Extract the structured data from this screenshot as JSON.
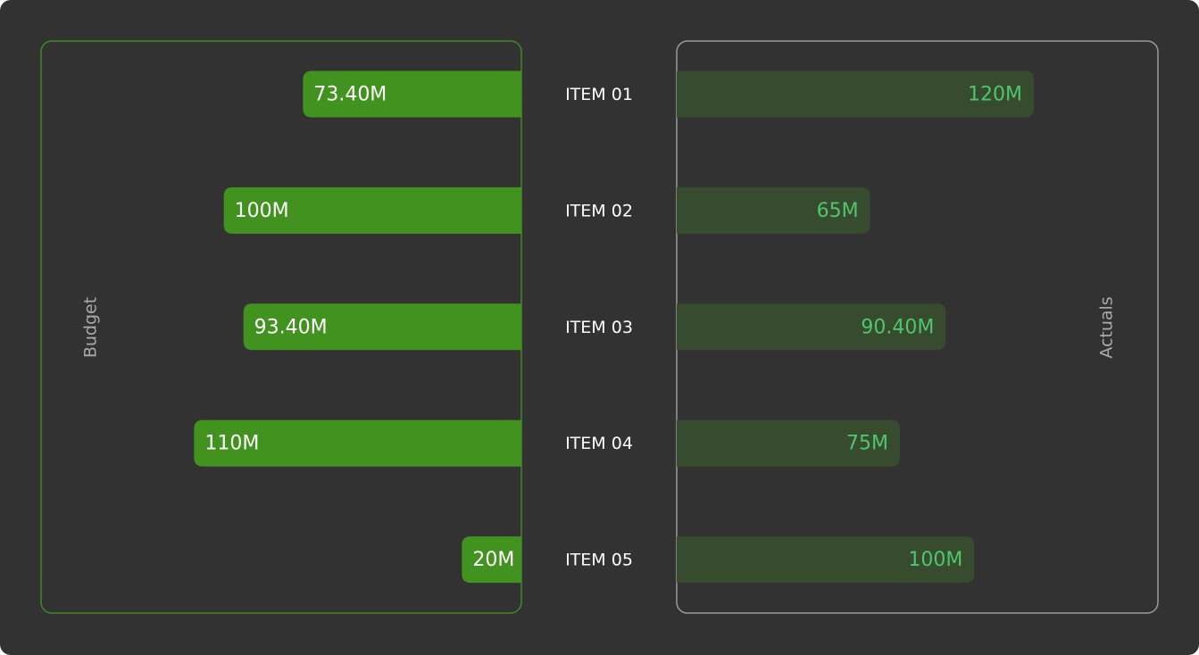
{
  "colors": {
    "background": "#323232",
    "budget_bar": "#42921f",
    "budget_frame": "#3f8a20",
    "actual_bar": "#374b2e",
    "actual_frame": "#9a9a9a",
    "actual_text": "#4fc56c",
    "panel_title_text": "#a9a9a9",
    "category_text": "#ffffff"
  },
  "chart_data": {
    "type": "bar",
    "orientation": "horizontal-diverging",
    "categories": [
      "ITEM 01",
      "ITEM 02",
      "ITEM 03",
      "ITEM 04",
      "ITEM 05"
    ],
    "series": [
      {
        "name": "Budget",
        "values": [
          73.4,
          100,
          93.4,
          110,
          20
        ],
        "labels": [
          "73.40M",
          "100M",
          "93.40M",
          "110M",
          "20M"
        ],
        "side": "left"
      },
      {
        "name": "Actuals",
        "values": [
          120,
          65,
          90.4,
          75,
          100
        ],
        "labels": [
          "120M",
          "65M",
          "90.40M",
          "75M",
          "100M"
        ],
        "side": "right"
      }
    ],
    "xlim": [
      0,
      120
    ],
    "grid": false,
    "legend": "none"
  }
}
